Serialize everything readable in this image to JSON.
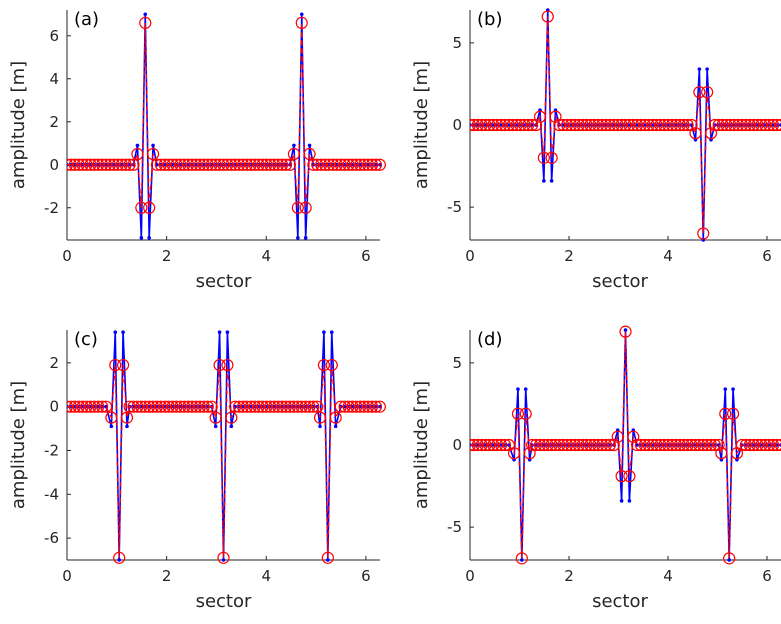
{
  "colors": {
    "blue": "#0000ff",
    "red": "#ff0000",
    "axis": "#262626"
  },
  "chart_data": [
    {
      "type": "line",
      "panel_label": "(a)",
      "xlabel": "sector",
      "ylabel": "amplitude [m]",
      "xlim": [
        0,
        6.283
      ],
      "ylim": [
        -3.5,
        7.2
      ],
      "xticks": [
        0,
        2,
        4,
        6
      ],
      "yticks": [
        -2,
        0,
        2,
        4,
        6
      ],
      "baseline_x": {
        "start": 0,
        "end": 6.283,
        "step": 0.0785
      },
      "spikes": [
        {
          "center": 1.5708,
          "w": 0.0785,
          "blue": [
            0.9,
            -3.4,
            7.0,
            -3.4,
            0.9
          ],
          "red": [
            0.5,
            -2.0,
            6.6,
            -2.0,
            0.5
          ]
        },
        {
          "center": 4.7124,
          "w": 0.0785,
          "blue": [
            0.9,
            -3.4,
            7.0,
            -3.4,
            0.9
          ],
          "red": [
            0.5,
            -2.0,
            6.6,
            -2.0,
            0.5
          ]
        }
      ],
      "series": [
        {
          "color": "blue",
          "marker": "dot"
        },
        {
          "color": "red",
          "marker": "circle"
        }
      ]
    },
    {
      "type": "line",
      "panel_label": "(b)",
      "xlabel": "sector",
      "ylabel": "amplitude [m]",
      "xlim": [
        0,
        6.283
      ],
      "ylim": [
        -7.0,
        7.0
      ],
      "xticks": [
        0,
        2,
        4,
        6
      ],
      "yticks": [
        -5,
        0,
        5
      ],
      "baseline_x": {
        "start": 0,
        "end": 6.283,
        "step": 0.0785
      },
      "spikes": [
        {
          "center": 1.5708,
          "w": 0.0785,
          "blue": [
            0.9,
            -3.4,
            7.0,
            -3.4,
            0.9
          ],
          "red": [
            0.5,
            -2.0,
            6.6,
            -2.0,
            0.5
          ]
        },
        {
          "center": 4.7124,
          "w": 0.0785,
          "blue": [
            -0.9,
            3.4,
            -7.0,
            3.4,
            -0.9
          ],
          "red": [
            -0.5,
            2.0,
            -6.6,
            2.0,
            -0.5
          ]
        }
      ],
      "series": [
        {
          "color": "blue",
          "marker": "dot"
        },
        {
          "color": "red",
          "marker": "circle"
        }
      ]
    },
    {
      "type": "line",
      "panel_label": "(c)",
      "xlabel": "sector",
      "ylabel": "amplitude [m]",
      "xlim": [
        0,
        6.283
      ],
      "ylim": [
        -7.0,
        3.5
      ],
      "xticks": [
        0,
        2,
        4,
        6
      ],
      "yticks": [
        -6,
        -4,
        -2,
        0,
        2
      ],
      "baseline_x": {
        "start": 0,
        "end": 6.283,
        "step": 0.0785
      },
      "spikes": [
        {
          "center": 1.0472,
          "w": 0.0785,
          "blue": [
            -0.9,
            3.4,
            -7.0,
            3.4,
            -0.9
          ],
          "red": [
            -0.5,
            1.9,
            -6.9,
            1.9,
            -0.5
          ]
        },
        {
          "center": 3.1416,
          "w": 0.0785,
          "blue": [
            -0.9,
            3.4,
            -7.0,
            3.4,
            -0.9
          ],
          "red": [
            -0.5,
            1.9,
            -6.9,
            1.9,
            -0.5
          ]
        },
        {
          "center": 5.236,
          "w": 0.0785,
          "blue": [
            -0.9,
            3.4,
            -7.0,
            3.4,
            -0.9
          ],
          "red": [
            -0.5,
            1.9,
            -6.9,
            1.9,
            -0.5
          ]
        }
      ],
      "series": [
        {
          "color": "blue",
          "marker": "dot"
        },
        {
          "color": "red",
          "marker": "circle"
        }
      ]
    },
    {
      "type": "line",
      "panel_label": "(d)",
      "xlabel": "sector",
      "ylabel": "amplitude [m]",
      "xlim": [
        0,
        6.283
      ],
      "ylim": [
        -7.0,
        7.0
      ],
      "xticks": [
        0,
        2,
        4,
        6
      ],
      "yticks": [
        -5,
        0,
        5
      ],
      "baseline_x": {
        "start": 0,
        "end": 6.283,
        "step": 0.0785
      },
      "spikes": [
        {
          "center": 1.0472,
          "w": 0.0785,
          "blue": [
            -0.9,
            3.4,
            -7.0,
            3.4,
            -0.9
          ],
          "red": [
            -0.5,
            1.9,
            -6.9,
            1.9,
            -0.5
          ]
        },
        {
          "center": 3.1416,
          "w": 0.0785,
          "blue": [
            0.9,
            -3.4,
            7.0,
            -3.4,
            0.9
          ],
          "red": [
            0.5,
            -1.9,
            6.9,
            -1.9,
            0.5
          ]
        },
        {
          "center": 5.236,
          "w": 0.0785,
          "blue": [
            -0.9,
            3.4,
            -7.0,
            3.4,
            -0.9
          ],
          "red": [
            -0.5,
            1.9,
            -6.9,
            1.9,
            -0.5
          ]
        }
      ],
      "series": [
        {
          "color": "blue",
          "marker": "dot"
        },
        {
          "color": "red",
          "marker": "circle"
        }
      ]
    }
  ]
}
